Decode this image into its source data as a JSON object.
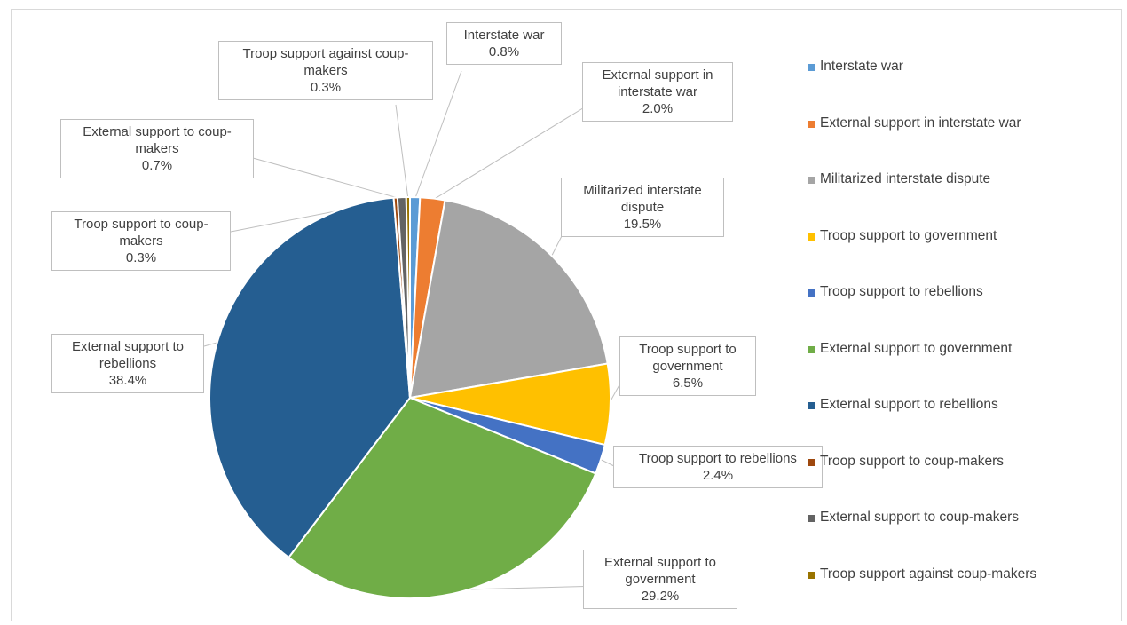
{
  "chart_data": {
    "type": "pie",
    "title": "",
    "slices": [
      {
        "name": "Interstate war",
        "value": 0.8,
        "label": "0.8%",
        "color": "#5b9bd5"
      },
      {
        "name": "External support in interstate war",
        "value": 2.0,
        "label": "2.0%",
        "color": "#ed7d31"
      },
      {
        "name": "Militarized interstate dispute",
        "value": 19.5,
        "label": "19.5%",
        "color": "#a5a5a5"
      },
      {
        "name": "Troop support to government",
        "value": 6.5,
        "label": "6.5%",
        "color": "#ffc000"
      },
      {
        "name": "Troop support to rebellions",
        "value": 2.4,
        "label": "2.4%",
        "color": "#4472c4"
      },
      {
        "name": "External support to government",
        "value": 29.2,
        "label": "29.2%",
        "color": "#70ad47"
      },
      {
        "name": "External support to rebellions",
        "value": 38.4,
        "label": "38.4%",
        "color": "#255e91"
      },
      {
        "name": "Troop support to coup-makers",
        "value": 0.3,
        "label": "0.3%",
        "color": "#9e480e"
      },
      {
        "name": "External support to coup-makers",
        "value": 0.7,
        "label": "0.7%",
        "color": "#636363"
      },
      {
        "name": "Troop support against coup-makers",
        "value": 0.3,
        "label": "0.3%",
        "color": "#997300"
      }
    ],
    "legend": {
      "position": "right"
    }
  }
}
